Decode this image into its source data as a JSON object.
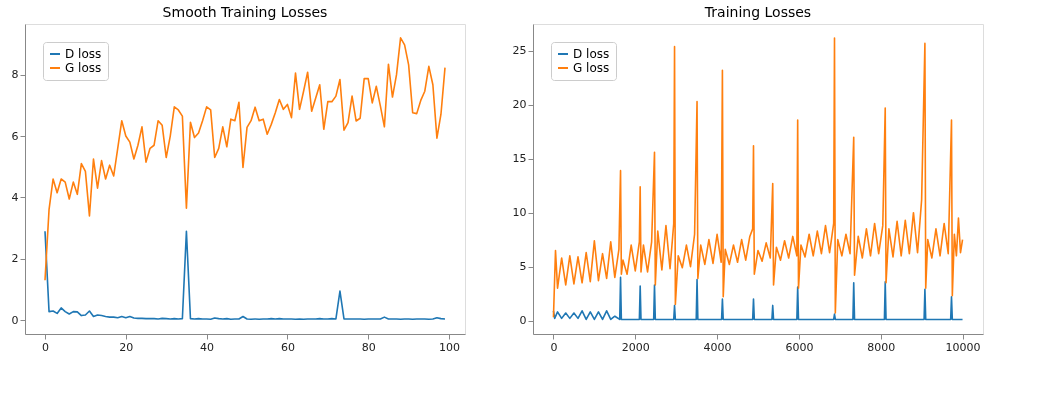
{
  "chart_data": [
    {
      "type": "line",
      "title": "Smooth Training Losses",
      "x": [
        0,
        1,
        2,
        3,
        4,
        5,
        6,
        7,
        8,
        9,
        10,
        11,
        12,
        13,
        14,
        15,
        16,
        17,
        18,
        19,
        20,
        21,
        22,
        23,
        24,
        25,
        26,
        27,
        28,
        29,
        30,
        31,
        32,
        33,
        34,
        35,
        36,
        37,
        38,
        39,
        40,
        41,
        42,
        43,
        44,
        45,
        46,
        47,
        48,
        49,
        50,
        51,
        52,
        53,
        54,
        55,
        56,
        57,
        58,
        59,
        60,
        61,
        62,
        63,
        64,
        65,
        66,
        67,
        68,
        69,
        70,
        71,
        72,
        73,
        74,
        75,
        76,
        77,
        78,
        79,
        80,
        81,
        82,
        83,
        84,
        85,
        86,
        87,
        88,
        89,
        90,
        91,
        92,
        93,
        94,
        95,
        96,
        97,
        98,
        99
      ],
      "series": [
        {
          "name": "D loss",
          "color": "#1f77b4",
          "values": [
            2.9,
            0.28,
            0.3,
            0.22,
            0.4,
            0.28,
            0.2,
            0.28,
            0.27,
            0.15,
            0.17,
            0.3,
            0.12,
            0.17,
            0.15,
            0.12,
            0.1,
            0.1,
            0.08,
            0.12,
            0.08,
            0.12,
            0.07,
            0.06,
            0.06,
            0.05,
            0.05,
            0.05,
            0.04,
            0.06,
            0.05,
            0.04,
            0.05,
            0.04,
            0.05,
            2.9,
            0.05,
            0.04,
            0.05,
            0.04,
            0.04,
            0.03,
            0.07,
            0.05,
            0.04,
            0.05,
            0.03,
            0.04,
            0.04,
            0.12,
            0.04,
            0.03,
            0.04,
            0.03,
            0.04,
            0.04,
            0.05,
            0.04,
            0.05,
            0.04,
            0.04,
            0.04,
            0.03,
            0.04,
            0.03,
            0.04,
            0.04,
            0.04,
            0.05,
            0.04,
            0.04,
            0.05,
            0.04,
            0.95,
            0.04,
            0.04,
            0.04,
            0.04,
            0.04,
            0.03,
            0.04,
            0.04,
            0.04,
            0.04,
            0.1,
            0.04,
            0.04,
            0.04,
            0.03,
            0.04,
            0.04,
            0.03,
            0.04,
            0.04,
            0.04,
            0.03,
            0.04,
            0.08,
            0.05,
            0.04
          ]
        },
        {
          "name": "G loss",
          "color": "#ff7f0e",
          "values": [
            1.3,
            3.6,
            4.6,
            4.15,
            4.6,
            4.5,
            3.95,
            4.5,
            4.1,
            5.1,
            4.85,
            3.4,
            5.25,
            4.3,
            5.2,
            4.6,
            5.05,
            4.7,
            5.6,
            6.5,
            6.0,
            5.8,
            5.25,
            5.7,
            6.3,
            5.15,
            5.6,
            5.7,
            6.5,
            6.35,
            5.3,
            6.0,
            6.95,
            6.85,
            6.65,
            3.65,
            6.45,
            5.95,
            6.1,
            6.5,
            6.95,
            6.85,
            5.3,
            5.6,
            6.3,
            5.65,
            6.55,
            6.5,
            7.1,
            4.98,
            6.28,
            6.5,
            6.94,
            6.5,
            6.55,
            6.06,
            6.38,
            6.76,
            7.19,
            6.87,
            7.03,
            6.6,
            8.05,
            6.87,
            7.46,
            8.08,
            6.81,
            7.24,
            7.67,
            6.22,
            7.12,
            7.12,
            7.3,
            7.84,
            6.19,
            6.44,
            7.3,
            6.49,
            6.58,
            7.87,
            7.87,
            7.08,
            7.62,
            6.98,
            6.3,
            8.34,
            7.27,
            8.0,
            9.2,
            8.97,
            8.32,
            6.76,
            6.73,
            7.16,
            7.46,
            8.27,
            7.67,
            5.93,
            6.71,
            8.23
          ]
        }
      ],
      "xlim": [
        -4.95,
        103.95
      ],
      "xticks": [
        0,
        20,
        40,
        60,
        80,
        100
      ],
      "ylim": [
        -0.45,
        9.65
      ],
      "yticks": [
        0,
        2,
        4,
        6,
        8
      ],
      "grid": false,
      "legend": "top left",
      "marker": "none",
      "line_style": "solid"
    },
    {
      "type": "line",
      "title": "Training Losses",
      "series": [
        {
          "name": "D loss",
          "color": "#1f77b4",
          "x": [
            0,
            30,
            100,
            200,
            300,
            400,
            500,
            600,
            700,
            800,
            900,
            1000,
            1100,
            1200,
            1300,
            1400,
            1500,
            1620,
            1640,
            1660,
            2100,
            2120,
            2140,
            2450,
            2470,
            2490,
            2940,
            2960,
            2980,
            3490,
            3510,
            3530,
            4110,
            4130,
            4150,
            4870,
            4890,
            4910,
            5340,
            5360,
            5380,
            5950,
            5970,
            5990,
            6850,
            6870,
            6890,
            7320,
            7340,
            7360,
            8090,
            8110,
            8130,
            9060,
            9080,
            9100,
            9710,
            9730,
            9750,
            10000
          ],
          "values": [
            0.9,
            0.2,
            0.8,
            0.2,
            0.7,
            0.2,
            0.7,
            0.2,
            0.9,
            0.1,
            0.8,
            0.1,
            0.8,
            0.1,
            0.9,
            0.1,
            0.4,
            0.1,
            4.0,
            0.1,
            0.1,
            3.2,
            0.1,
            0.1,
            3.3,
            0.1,
            0.1,
            1.4,
            0.1,
            0.1,
            3.8,
            0.1,
            0.1,
            2.0,
            0.1,
            0.1,
            2.0,
            0.1,
            0.1,
            1.4,
            0.1,
            0.1,
            3.1,
            0.1,
            0.1,
            0.6,
            0.1,
            0.1,
            3.5,
            0.1,
            0.1,
            3.6,
            0.1,
            0.1,
            2.9,
            0.1,
            0.1,
            2.2,
            0.1,
            0.1
          ]
        },
        {
          "name": "G loss",
          "color": "#ff7f0e",
          "x": [
            0,
            50,
            100,
            200,
            300,
            400,
            500,
            600,
            700,
            800,
            900,
            1000,
            1100,
            1200,
            1300,
            1400,
            1500,
            1600,
            1640,
            1660,
            1700,
            1800,
            1900,
            2000,
            2100,
            2120,
            2140,
            2200,
            2300,
            2400,
            2470,
            2490,
            2550,
            2650,
            2750,
            2850,
            2940,
            2960,
            2980,
            3050,
            3150,
            3250,
            3350,
            3450,
            3510,
            3530,
            3600,
            3700,
            3800,
            3900,
            4000,
            4100,
            4130,
            4150,
            4200,
            4300,
            4400,
            4500,
            4600,
            4700,
            4800,
            4870,
            4890,
            4910,
            5000,
            5100,
            5200,
            5300,
            5360,
            5380,
            5450,
            5550,
            5650,
            5750,
            5850,
            5950,
            5970,
            5990,
            6050,
            6150,
            6250,
            6350,
            6450,
            6550,
            6650,
            6750,
            6850,
            6870,
            6890,
            6950,
            7050,
            7150,
            7250,
            7340,
            7360,
            7450,
            7550,
            7650,
            7750,
            7850,
            7950,
            8050,
            8110,
            8130,
            8200,
            8300,
            8400,
            8500,
            8600,
            8700,
            8800,
            8900,
            9000,
            9080,
            9100,
            9150,
            9250,
            9350,
            9450,
            9550,
            9650,
            9730,
            9750,
            9800,
            9850,
            9900,
            9950,
            10000
          ],
          "values": [
            0.3,
            6.5,
            3.0,
            5.8,
            3.3,
            6.0,
            3.4,
            5.9,
            3.5,
            6.3,
            3.6,
            7.4,
            3.7,
            6.2,
            3.9,
            7.3,
            4.0,
            6.6,
            13.9,
            4.3,
            5.6,
            4.3,
            7.0,
            4.6,
            7.3,
            12.4,
            4.5,
            7.0,
            4.5,
            7.3,
            15.6,
            3.3,
            8.3,
            4.7,
            8.8,
            4.8,
            9.0,
            25.4,
            1.5,
            6.0,
            4.9,
            7.0,
            5.0,
            8.0,
            20.3,
            3.9,
            7.0,
            5.2,
            7.5,
            5.3,
            8.0,
            5.4,
            23.2,
            2.2,
            6.6,
            5.2,
            7.0,
            5.4,
            7.5,
            5.6,
            7.8,
            8.5,
            16.2,
            4.3,
            6.5,
            5.5,
            7.2,
            5.8,
            12.7,
            3.3,
            6.8,
            5.6,
            7.4,
            5.8,
            7.8,
            6.0,
            18.6,
            3.0,
            7.0,
            5.9,
            8.0,
            6.0,
            8.3,
            6.2,
            8.8,
            6.3,
            9.0,
            26.2,
            0.7,
            7.5,
            6.0,
            8.0,
            6.2,
            17.0,
            4.2,
            7.8,
            5.8,
            8.5,
            6.0,
            9.0,
            6.2,
            8.8,
            19.7,
            3.5,
            8.5,
            5.9,
            9.2,
            6.0,
            9.3,
            6.2,
            10.0,
            6.3,
            11.2,
            25.7,
            3.0,
            7.5,
            5.8,
            8.5,
            6.0,
            9.0,
            6.2,
            18.6,
            2.3,
            8.0,
            6.0,
            9.5,
            6.3,
            7.5
          ]
        }
      ],
      "xlim": [
        -500,
        10500
      ],
      "xticks": [
        0,
        2000,
        4000,
        6000,
        8000,
        10000
      ],
      "ylim": [
        -1.25,
        27.5
      ],
      "yticks": [
        0,
        5,
        10,
        15,
        20,
        25
      ],
      "grid": false,
      "legend": "top left",
      "marker": "none",
      "line_style": "solid"
    }
  ]
}
